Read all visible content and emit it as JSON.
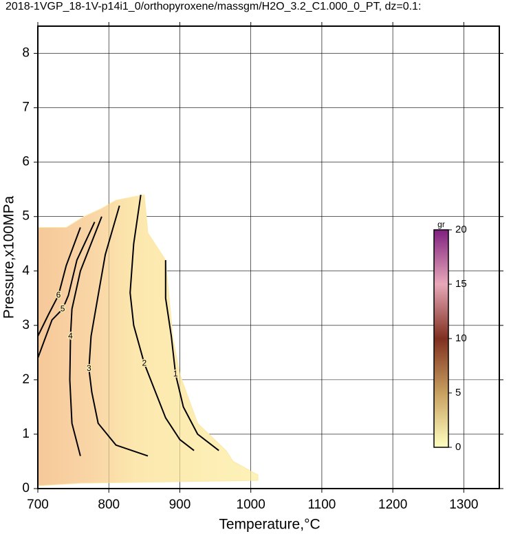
{
  "chart_data": {
    "type": "contour",
    "title": "2018-1VGP_18-1V-p14i1_0/orthopyroxene/massgm/H2O_3.2_C1.000_0_PT, dz=0.1:",
    "x_label": "Temperature,°C",
    "y_label": "Pressure,x100MPa",
    "xlim": [
      700,
      1350
    ],
    "ylim": [
      0,
      8.5
    ],
    "xticks": [
      700,
      800,
      900,
      1000,
      1100,
      1200,
      1300
    ],
    "yticks": [
      0,
      1,
      2,
      3,
      4,
      5,
      6,
      7,
      8
    ],
    "grid": true,
    "field": {
      "color": "#fce8a8",
      "x": [
        700,
        700,
        740,
        765,
        790,
        810,
        850,
        855,
        880,
        885,
        890,
        900,
        925,
        965,
        975,
        1010,
        1010,
        760
      ],
      "y": [
        0.05,
        4.8,
        4.8,
        5.0,
        5.15,
        5.3,
        5.4,
        4.7,
        4.2,
        3.5,
        2.8,
        2.1,
        1.2,
        0.7,
        0.5,
        0.25,
        0.15,
        0.1
      ]
    },
    "contours": [
      {
        "level": 1,
        "x": [
          880,
          880,
          888,
          894,
          905,
          925,
          955
        ],
        "y": [
          4.2,
          3.5,
          2.8,
          2.1,
          1.5,
          1.0,
          0.7
        ]
      },
      {
        "level": 2,
        "x": [
          845,
          835,
          830,
          835,
          850,
          865,
          880,
          900,
          920
        ],
        "y": [
          5.4,
          4.5,
          3.6,
          3.0,
          2.3,
          1.8,
          1.3,
          0.9,
          0.7
        ]
      },
      {
        "level": 3,
        "x": [
          815,
          795,
          785,
          775,
          772,
          776,
          785,
          810,
          855
        ],
        "y": [
          5.2,
          4.3,
          3.55,
          2.8,
          2.2,
          1.77,
          1.2,
          0.8,
          0.6
        ]
      },
      {
        "level": 4,
        "x": [
          790,
          760,
          748,
          746,
          745,
          748,
          760
        ],
        "y": [
          5.0,
          4.0,
          3.3,
          2.8,
          2.0,
          1.2,
          0.6
        ]
      },
      {
        "level": 5,
        "x": [
          780,
          755,
          743,
          735,
          720,
          700
        ],
        "y": [
          4.9,
          4.2,
          3.55,
          3.3,
          3.1,
          2.4
        ]
      },
      {
        "level": 6,
        "x": [
          760,
          740,
          729,
          715,
          700
        ],
        "y": [
          4.8,
          4.1,
          3.55,
          3.2,
          2.8
        ]
      }
    ],
    "line_color": "#000000",
    "colorbar": {
      "label": "gr",
      "lim": [
        0,
        20
      ],
      "ticks": [
        0,
        5,
        10,
        15,
        20
      ],
      "colors": [
        "#ffffc0",
        "#c8a060",
        "#803020",
        "#e8a8b8",
        "#802080"
      ]
    }
  }
}
